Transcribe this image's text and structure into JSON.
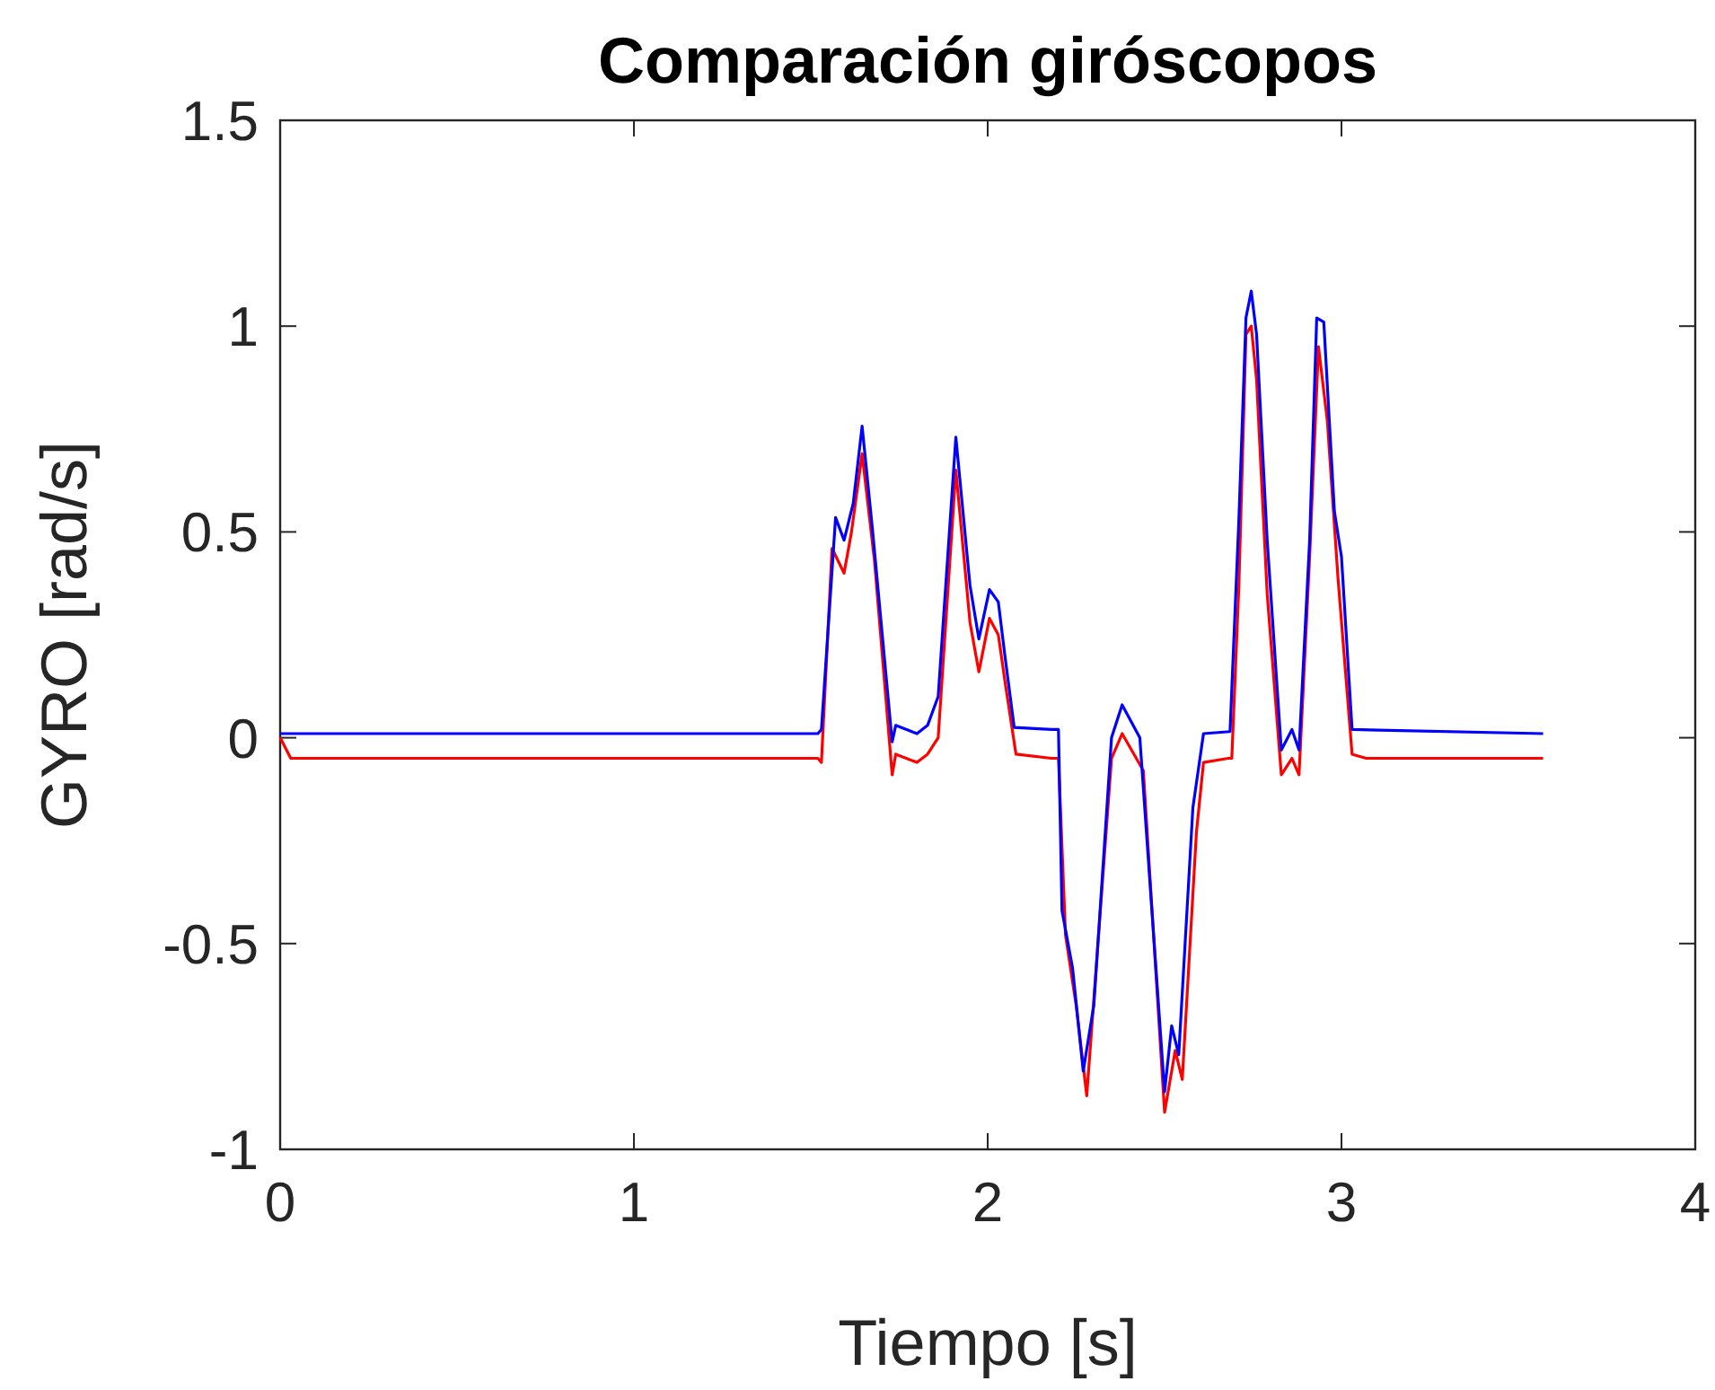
{
  "chart_data": {
    "type": "line",
    "title": "Comparación giróscopos",
    "xlabel": "Tiempo [s]",
    "ylabel": "GYRO [rad/s]",
    "xlim": [
      0,
      4
    ],
    "ylim": [
      -1,
      1.5
    ],
    "xticks": [
      0,
      1,
      2,
      3,
      4
    ],
    "yticks": [
      -1,
      -0.5,
      0,
      0.5,
      1,
      1.5
    ],
    "grid": false,
    "series": [
      {
        "color": "#ff0000",
        "x": [
          0,
          0.03,
          1.52,
          1.53,
          1.56,
          1.594,
          1.615,
          1.645,
          1.68,
          1.73,
          1.74,
          1.8,
          1.83,
          1.86,
          1.91,
          1.95,
          1.975,
          2.005,
          2.03,
          2.05,
          2.08,
          2.18,
          2.2,
          2.22,
          2.25,
          2.28,
          2.35,
          2.38,
          2.44,
          2.5,
          2.53,
          2.55,
          2.59,
          2.61,
          2.68,
          2.69,
          2.71,
          2.73,
          2.745,
          2.76,
          2.79,
          2.83,
          2.86,
          2.88,
          2.91,
          2.935,
          2.96,
          2.99,
          3.03,
          3.07,
          3.57
        ],
        "values": [
          0,
          -0.05,
          -0.05,
          -0.06,
          0.46,
          0.4,
          0.5,
          0.69,
          0.43,
          -0.09,
          -0.04,
          -0.06,
          -0.04,
          0,
          0.65,
          0.28,
          0.16,
          0.29,
          0.25,
          0.13,
          -0.04,
          -0.05,
          -0.05,
          -0.48,
          -0.65,
          -0.87,
          -0.05,
          0.01,
          -0.08,
          -0.91,
          -0.76,
          -0.83,
          -0.23,
          -0.06,
          -0.05,
          -0.05,
          0.37,
          0.98,
          1.0,
          0.87,
          0.35,
          -0.09,
          -0.05,
          -0.09,
          0.44,
          0.95,
          0.77,
          0.39,
          -0.04,
          -0.05,
          -0.05
        ]
      },
      {
        "color": "#0000ff",
        "x": [
          0,
          1.52,
          1.53,
          1.57,
          1.594,
          1.62,
          1.645,
          1.675,
          1.73,
          1.74,
          1.8,
          1.83,
          1.86,
          1.91,
          1.95,
          1.975,
          2.005,
          2.03,
          2.05,
          2.075,
          2.18,
          2.2,
          2.21,
          2.24,
          2.27,
          2.3,
          2.35,
          2.38,
          2.43,
          2.5,
          2.52,
          2.54,
          2.58,
          2.61,
          2.685,
          2.71,
          2.73,
          2.745,
          2.76,
          2.79,
          2.83,
          2.86,
          2.88,
          2.91,
          2.93,
          2.95,
          2.98,
          3.0,
          3.03,
          3.57
        ],
        "values": [
          0.01,
          0.01,
          0.02,
          0.535,
          0.48,
          0.57,
          0.757,
          0.5,
          -0.01,
          0.03,
          0.01,
          0.03,
          0.1,
          0.73,
          0.37,
          0.24,
          0.36,
          0.33,
          0.19,
          0.025,
          0.02,
          0.02,
          -0.42,
          -0.56,
          -0.81,
          -0.65,
          0,
          0.08,
          0,
          -0.86,
          -0.7,
          -0.77,
          -0.17,
          0.01,
          0.015,
          0.53,
          1.02,
          1.085,
          0.98,
          0.48,
          -0.03,
          0.02,
          -0.03,
          0.48,
          1.02,
          1.01,
          0.55,
          0.44,
          0.02,
          0.01
        ]
      }
    ]
  }
}
